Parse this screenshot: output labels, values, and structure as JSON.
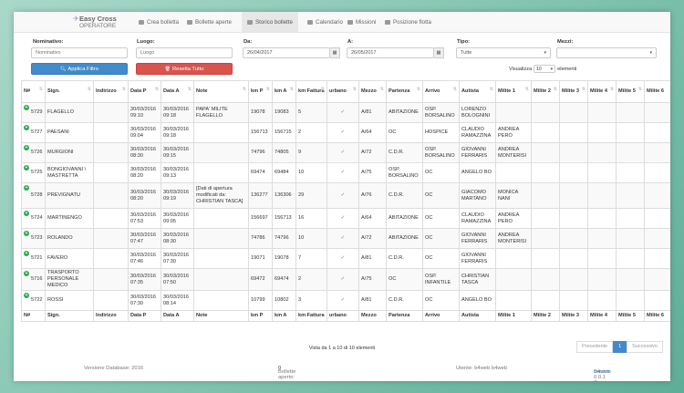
{
  "brand": {
    "name": "Easy Cross",
    "sub": "OPERATORE"
  },
  "nav": [
    {
      "label": "Crea bolletta",
      "icon": "plus-square-icon"
    },
    {
      "label": "Bollette aperte",
      "icon": "document-icon"
    },
    {
      "label": "Storico bollette",
      "icon": "archive-icon",
      "active": true
    },
    {
      "label": "Calendario",
      "icon": "calendar-icon"
    },
    {
      "label": "Missioni",
      "icon": "briefcase-icon"
    },
    {
      "label": "Posizione flotta",
      "icon": "map-icon"
    }
  ],
  "filters": {
    "nominativo_label": "Nominativo:",
    "nominativo_placeholder": "Nominativo",
    "luogo_label": "Luogo:",
    "luogo_placeholder": "Luogo",
    "da_label": "Da:",
    "da_value": "26/04/2017",
    "a_label": "A:",
    "a_value": "26/05/2017",
    "tipo_label": "Tipo:",
    "tipo_value": "Tutte",
    "mezzi_label": "Mezzi:",
    "mezzi_value": "",
    "apply_label": "Applica Filtro",
    "reset_label": "Resetta Tutto"
  },
  "show": {
    "prefix": "Visualizza",
    "value": "10",
    "suffix": "elementi"
  },
  "columns": [
    "N#",
    "Sign.",
    "Indirizzo",
    "Data P",
    "Data A",
    "Note",
    "km P",
    "km A",
    "km Fattura",
    "urbano",
    "Mezzo",
    "Partenza",
    "Arrivo",
    "Autista",
    "Milite 1",
    "Milite 2",
    "Milite 3",
    "Milite 4",
    "Milite 5",
    "Milite 6"
  ],
  "footer_columns": [
    "N#",
    "Sign.",
    "Indirizzo",
    "Data P",
    "Data A",
    "Note",
    "km P",
    "km A",
    "km Fattura",
    "urbano",
    "Mezzo",
    "Partenza",
    "Arrivo",
    "Autista",
    "Milite 1",
    "Milite 2",
    "Milite 3",
    "Milite 4",
    "Milite 5",
    "Milite 6"
  ],
  "rows": [
    [
      "5729",
      "FLAGELLO",
      "",
      "30/03/2016 09:10",
      "30/03/2016 09:18",
      "PAPA' MILITE FLAGELLO",
      "19078",
      "19083",
      "5",
      "✓",
      "A/81",
      "ABITAZIONE",
      "OSP. BORSALINO",
      "LORENZO BOLOGNINI",
      "",
      "",
      "",
      "",
      "",
      ""
    ],
    [
      "5727",
      "PAESANI",
      "",
      "30/03/2016 09:04",
      "30/03/2016 09:18",
      "",
      "156713",
      "156715",
      "2",
      "✓",
      "A/64",
      "OC",
      "HOSPICE",
      "CLAUDIO RAMAZZINA",
      "ANDREA PERO",
      "",
      "",
      "",
      "",
      ""
    ],
    [
      "5726",
      "MURGIONI",
      "",
      "30/03/2016 08:30",
      "30/03/2016 09:15",
      "",
      "74796",
      "74805",
      "9",
      "✓",
      "A/72",
      "C.D.R.",
      "OSP. BORSALINO",
      "GIOVANNI FERRARIS",
      "ANDREA MONTERISI",
      "",
      "",
      "",
      "",
      ""
    ],
    [
      "5725",
      "BONGIOVANNI \\ MASTRETTA",
      "",
      "30/03/2016 08:20",
      "30/03/2016 09:13",
      "",
      "69474",
      "69484",
      "10",
      "✓",
      "A/75",
      "OSP. BORSALINO",
      "OC",
      "ANGELO BO",
      "",
      "",
      "",
      "",
      "",
      ""
    ],
    [
      "5728",
      "PREVIGNATU",
      "",
      "30/03/2016 08:20",
      "30/03/2016 09:19",
      "[Dati di apertura modificati da: CHRISTIAN TASCA]",
      "136277",
      "136306",
      "29",
      "✓",
      "A/76",
      "C.D.R.",
      "OC",
      "GIACOMO MARTANO",
      "MONICA NANI",
      "",
      "",
      "",
      "",
      ""
    ],
    [
      "5724",
      "MARTINENGO",
      "",
      "30/03/2016 07:53",
      "30/03/2016 09:05",
      "",
      "156697",
      "156713",
      "16",
      "✓",
      "A/64",
      "ABITAZIONE",
      "OC",
      "CLAUDIO RAMAZZINA",
      "ANDREA PERO",
      "",
      "",
      "",
      "",
      ""
    ],
    [
      "5723",
      "ROLANDO",
      "",
      "30/03/2016 07:47",
      "30/03/2016 08:30",
      "",
      "74786",
      "74796",
      "10",
      "✓",
      "A/72",
      "ABITAZIONE",
      "OC",
      "GIOVANNI FERRARIS",
      "ANDREA MONTERISI",
      "",
      "",
      "",
      "",
      ""
    ],
    [
      "5721",
      "FAVERO",
      "",
      "30/03/2016 07:46",
      "30/03/2016 07:30",
      "",
      "19071",
      "19078",
      "7",
      "✓",
      "A/81",
      "C.D.R.",
      "OC",
      "GIOVANNI FERRARIS",
      "",
      "",
      "",
      "",
      "",
      ""
    ],
    [
      "5716",
      "TRASPORTO PERSONALE MEDICO",
      "",
      "30/03/2016 07:35",
      "30/03/2016 07:50",
      "",
      "69472",
      "69474",
      "2",
      "✓",
      "A/75",
      "OC",
      "OSP. INFANTILE",
      "CHRISTIAN TASCA",
      "",
      "",
      "",
      "",
      "",
      ""
    ],
    [
      "5722",
      "ROSSI",
      "",
      "30/03/2016 07:30",
      "30/03/2016 08:14",
      "",
      "10799",
      "10802",
      "3",
      "✓",
      "A/81",
      "C.D.R.",
      "OC",
      "ANGELO BO",
      "",
      "",
      "",
      "",
      "",
      ""
    ]
  ],
  "table_info": "Vista da 1 a 10 di 10 elementi",
  "pager": {
    "prev": "Precedente",
    "page": "1",
    "next": "Successivo"
  },
  "footer": {
    "db": "Versione Database: 2016",
    "open_label": "Bollette aperte:",
    "open_count": "0",
    "user": "Utente: b4web b4web",
    "version": "version 0.0.1 © 2017",
    "company": "B4web"
  }
}
